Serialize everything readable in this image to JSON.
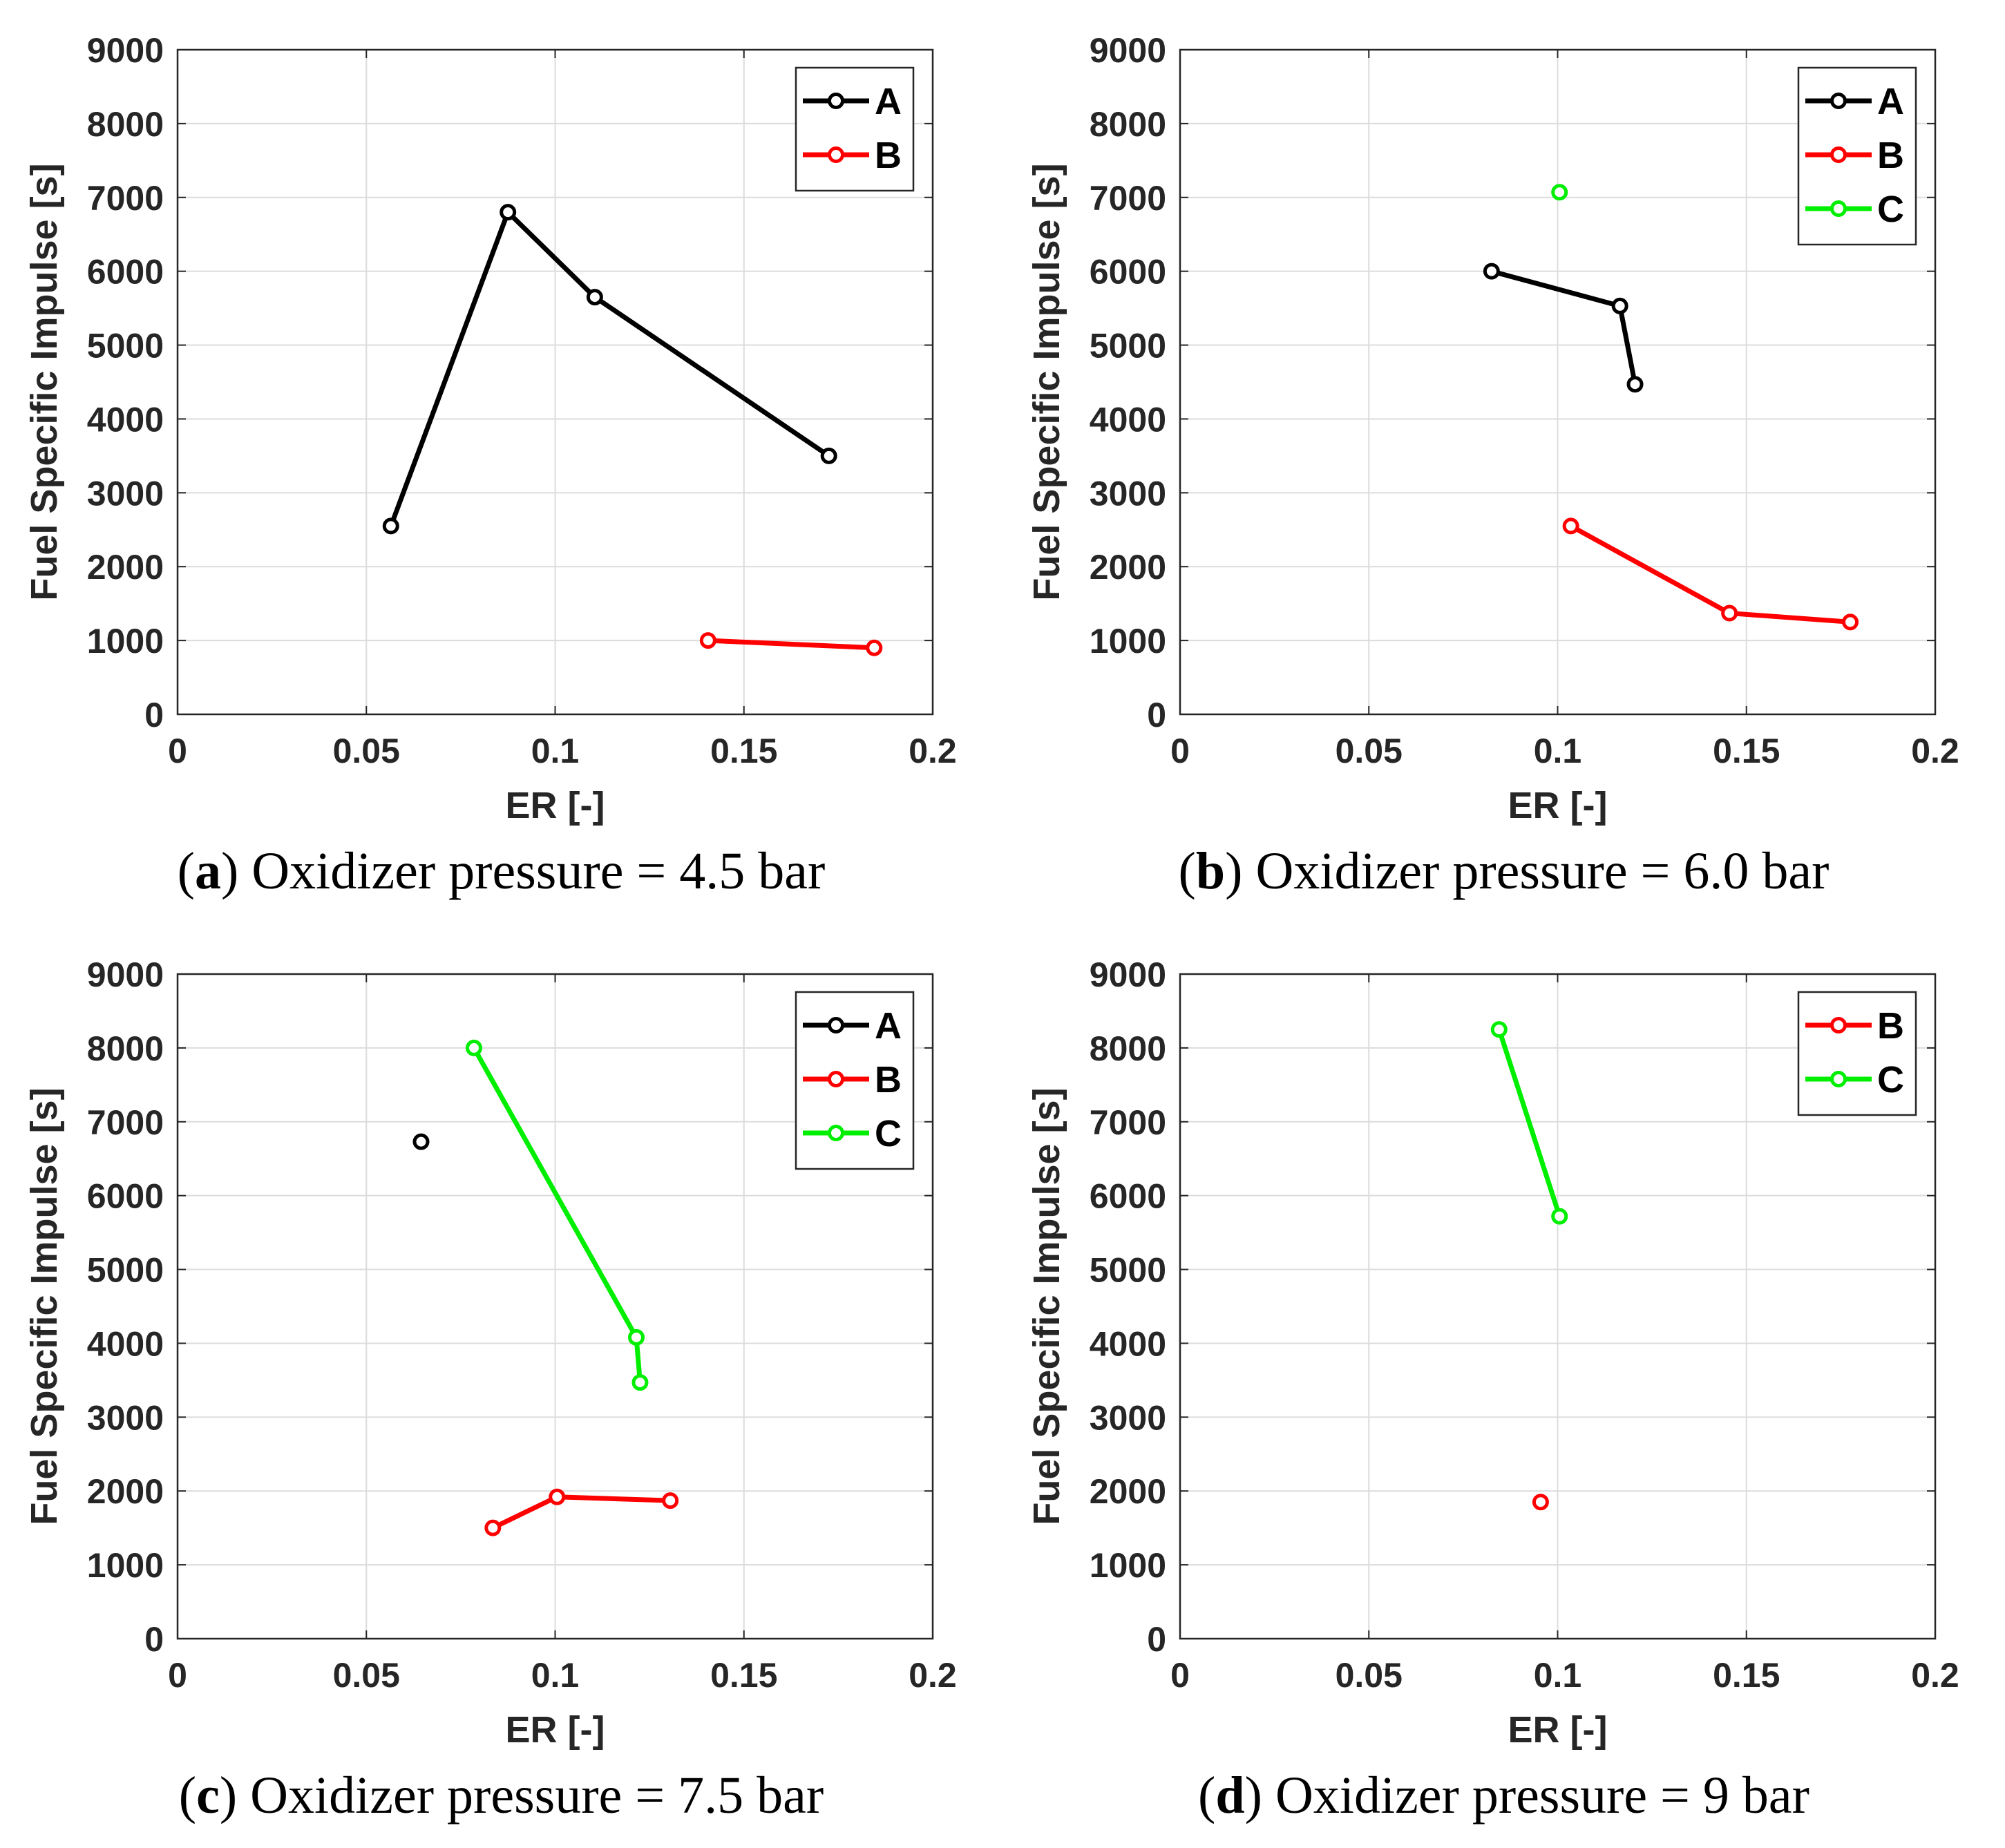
{
  "chart_data": [
    {
      "type": "line",
      "caption_letter": "a",
      "caption_text": "Oxidizer pressure = 4.5 bar",
      "xlabel": "ER [-]",
      "ylabel": "Fuel Specific Impulse [s]",
      "xlim": [
        0,
        0.2
      ],
      "ylim": [
        0,
        9000
      ],
      "xticks": [
        "0",
        "0.05",
        "0.1",
        "0.15",
        "0.2"
      ],
      "yticks": [
        "0",
        "1000",
        "2000",
        "3000",
        "4000",
        "5000",
        "6000",
        "7000",
        "8000",
        "9000"
      ],
      "grid": true,
      "legend_position": "top-right",
      "series": [
        {
          "name": "A",
          "color": "#000000",
          "x": [
            0.0565,
            0.0875,
            0.1105,
            0.1725
          ],
          "y": [
            2550,
            6800,
            5650,
            3500
          ]
        },
        {
          "name": "B",
          "color": "#ff0000",
          "x": [
            0.1405,
            0.1845
          ],
          "y": [
            1000,
            900
          ]
        }
      ]
    },
    {
      "type": "line",
      "caption_letter": "b",
      "caption_text": "Oxidizer pressure = 6.0 bar",
      "xlabel": "ER [-]",
      "ylabel": "Fuel Specific Impulse [s]",
      "xlim": [
        0,
        0.2
      ],
      "ylim": [
        0,
        9000
      ],
      "xticks": [
        "0",
        "0.05",
        "0.1",
        "0.15",
        "0.2"
      ],
      "yticks": [
        "0",
        "1000",
        "2000",
        "3000",
        "4000",
        "5000",
        "6000",
        "7000",
        "8000",
        "9000"
      ],
      "grid": true,
      "legend_position": "top-right",
      "series": [
        {
          "name": "A",
          "color": "#000000",
          "x": [
            0.0825,
            0.1165,
            0.1205
          ],
          "y": [
            6000,
            5530,
            4470
          ]
        },
        {
          "name": "B",
          "color": "#ff0000",
          "x": [
            0.1035,
            0.1455,
            0.1775
          ],
          "y": [
            2550,
            1370,
            1250
          ]
        },
        {
          "name": "C",
          "color": "#00ee00",
          "x": [
            0.1005
          ],
          "y": [
            7070
          ]
        }
      ]
    },
    {
      "type": "line",
      "caption_letter": "c",
      "caption_text": "Oxidizer pressure = 7.5 bar",
      "xlabel": "ER [-]",
      "ylabel": "Fuel Specific Impulse [s]",
      "xlim": [
        0,
        0.2
      ],
      "ylim": [
        0,
        9000
      ],
      "xticks": [
        "0",
        "0.05",
        "0.1",
        "0.15",
        "0.2"
      ],
      "yticks": [
        "0",
        "1000",
        "2000",
        "3000",
        "4000",
        "5000",
        "6000",
        "7000",
        "8000",
        "9000"
      ],
      "grid": true,
      "legend_position": "top-right",
      "series": [
        {
          "name": "A",
          "color": "#000000",
          "x": [
            0.0645
          ],
          "y": [
            6730
          ]
        },
        {
          "name": "B",
          "color": "#ff0000",
          "x": [
            0.0835,
            0.1005,
            0.1305
          ],
          "y": [
            1500,
            1920,
            1870
          ]
        },
        {
          "name": "C",
          "color": "#00ee00",
          "x": [
            0.0785,
            0.1215,
            0.1225
          ],
          "y": [
            8000,
            4080,
            3470
          ]
        }
      ]
    },
    {
      "type": "line",
      "caption_letter": "d",
      "caption_text": "Oxidizer pressure = 9 bar",
      "xlabel": "ER [-]",
      "ylabel": "Fuel Specific Impulse [s]",
      "xlim": [
        0,
        0.2
      ],
      "ylim": [
        0,
        9000
      ],
      "xticks": [
        "0",
        "0.05",
        "0.1",
        "0.15",
        "0.2"
      ],
      "yticks": [
        "0",
        "1000",
        "2000",
        "3000",
        "4000",
        "5000",
        "6000",
        "7000",
        "8000",
        "9000"
      ],
      "grid": true,
      "legend_position": "top-right",
      "series": [
        {
          "name": "B",
          "color": "#ff0000",
          "x": [
            0.0955
          ],
          "y": [
            1850
          ]
        },
        {
          "name": "C",
          "color": "#00ee00",
          "x": [
            0.0845,
            0.1005
          ],
          "y": [
            8250,
            5720
          ]
        }
      ]
    }
  ]
}
